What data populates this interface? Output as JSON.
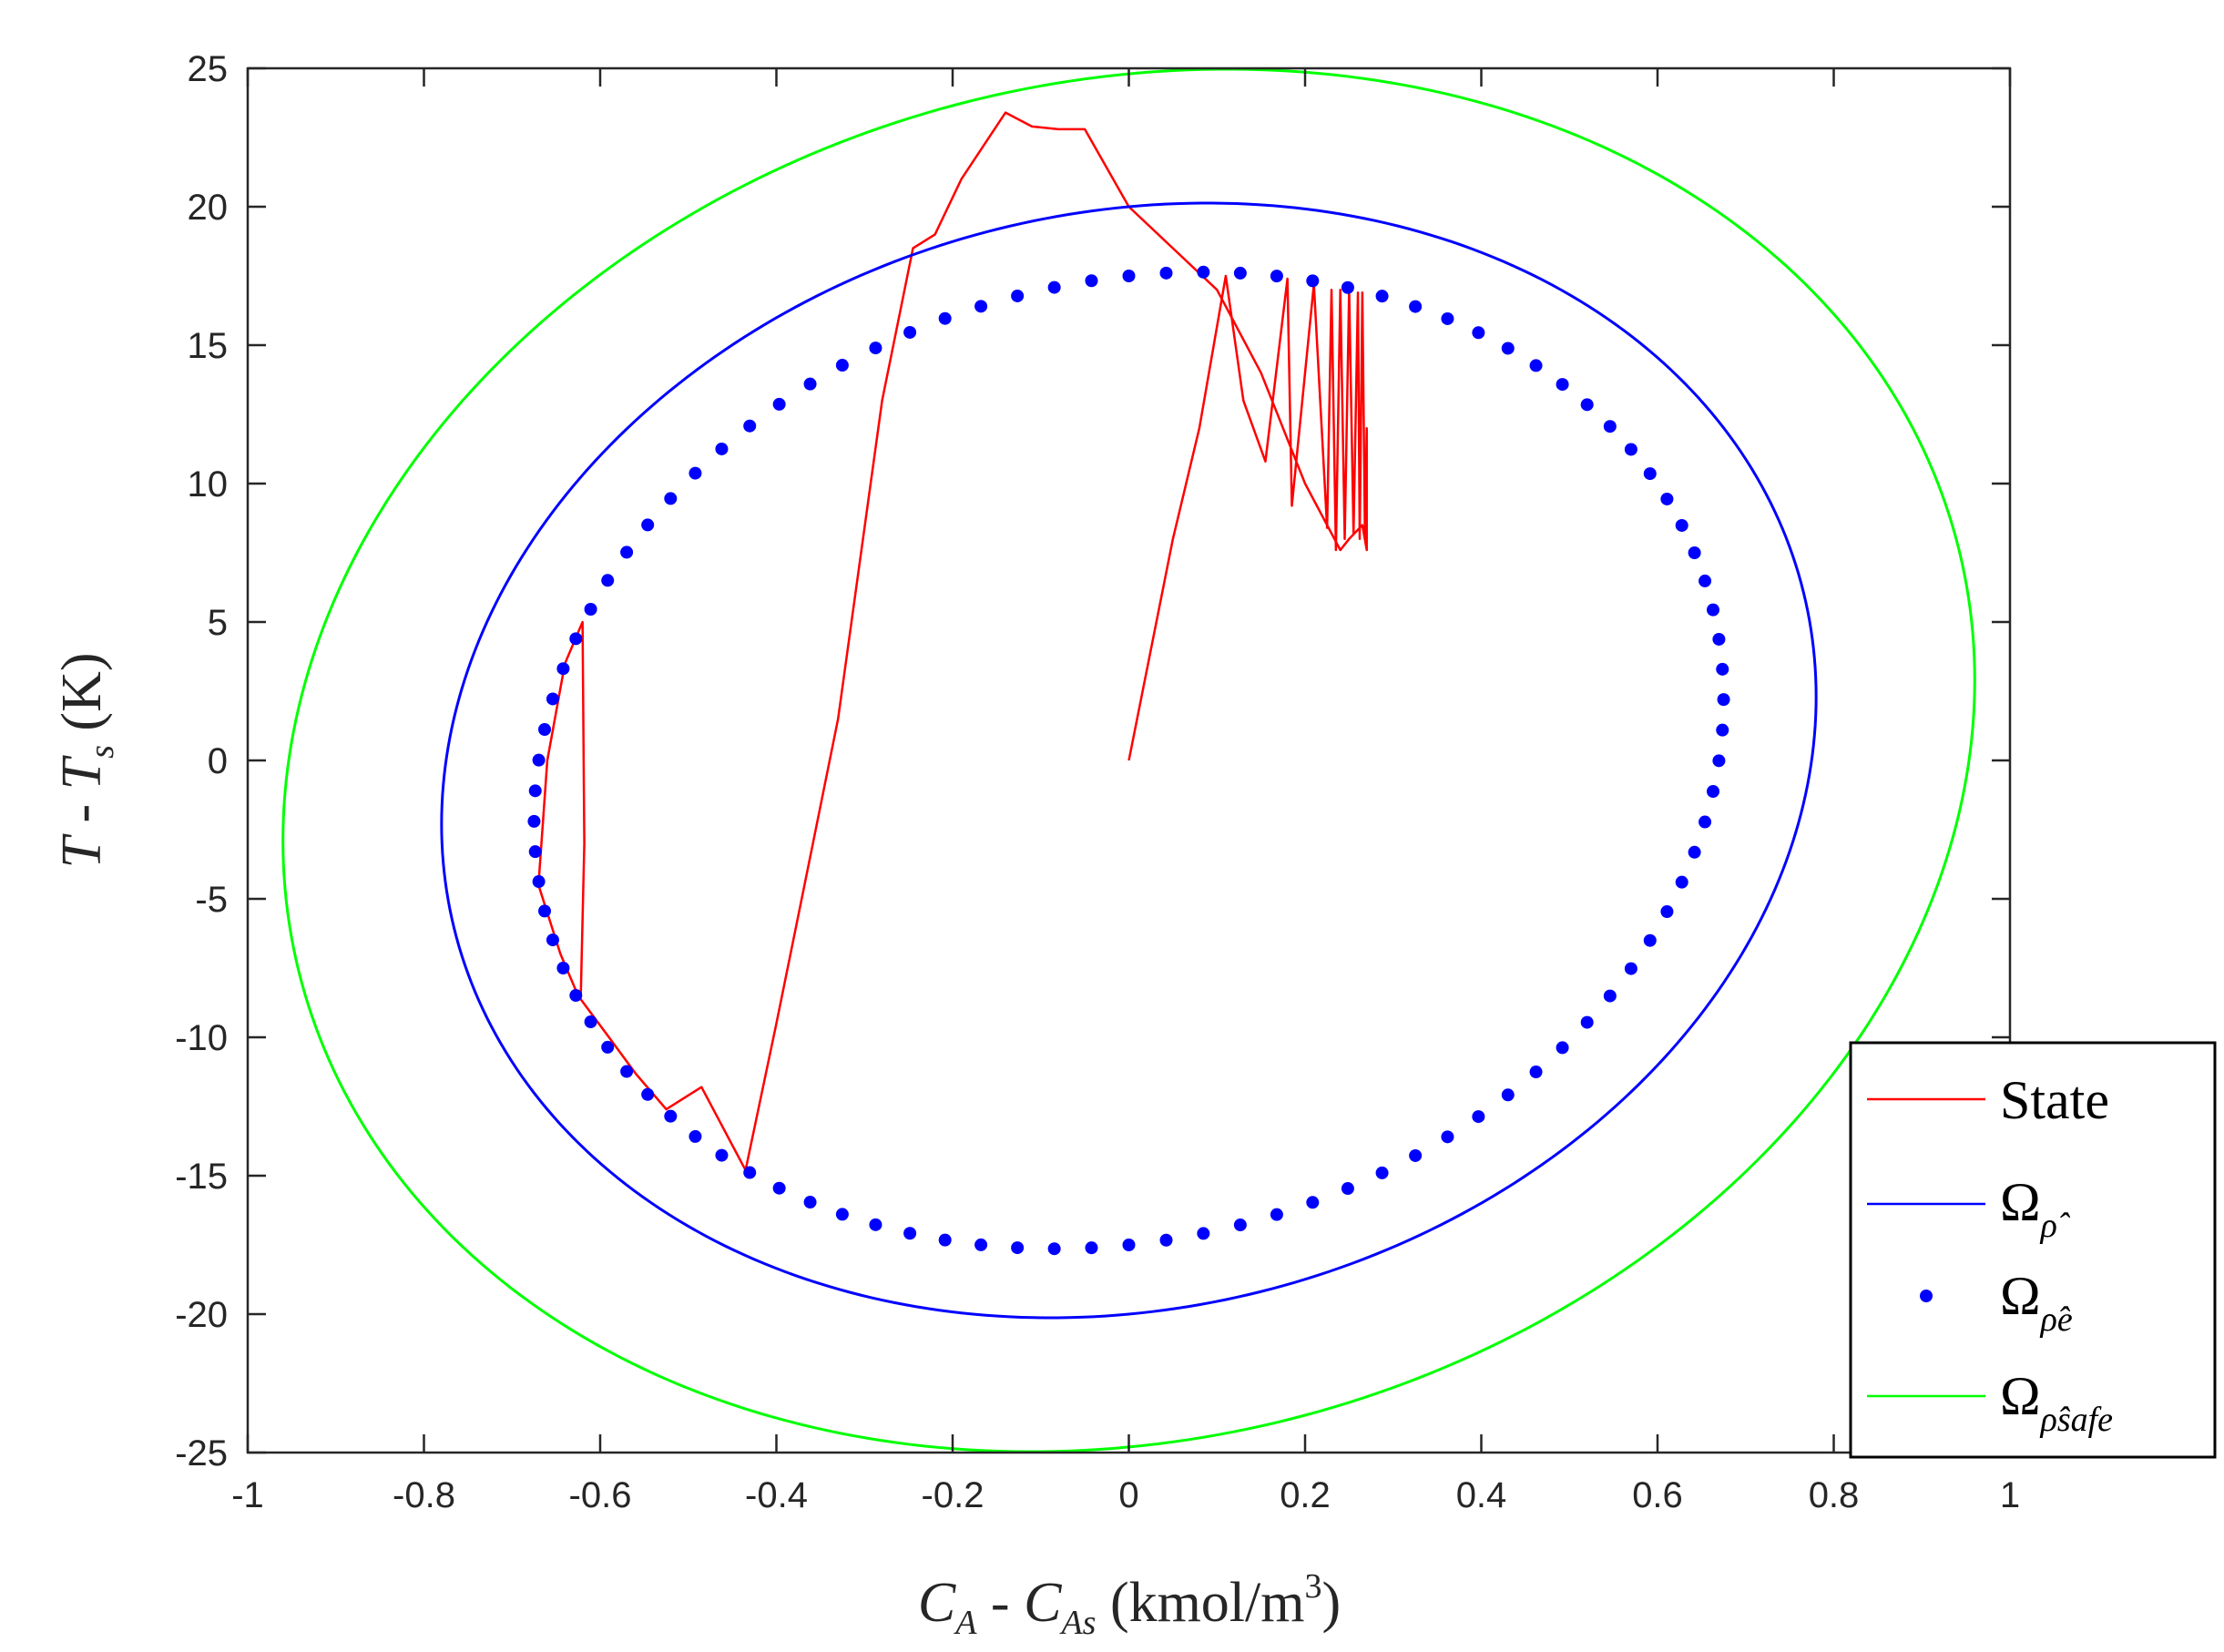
{
  "chart_data": {
    "type": "line",
    "title": "",
    "xlabel": {
      "a": "C",
      "a_sub": "A",
      "sep": " - ",
      "b": "C",
      "b_sub": "As",
      "unit": " (kmol/m",
      "unit_sup": "3",
      "unit_end": ")"
    },
    "ylabel": {
      "a": "T",
      "sep": " - ",
      "b": "T",
      "b_sub": "s",
      "unit": " (K)"
    },
    "xlim": [
      -1,
      1
    ],
    "ylim": [
      -25,
      25
    ],
    "xticks": [
      "-1",
      "-0.8",
      "-0.6",
      "-0.4",
      "-0.2",
      "0",
      "0.2",
      "0.4",
      "0.6",
      "0.8",
      "1"
    ],
    "yticks": [
      "25",
      "20",
      "15",
      "10",
      "5",
      "0",
      "-5",
      "-10",
      "-15",
      "-20",
      "-25"
    ],
    "grid": false,
    "legend_position": "bottom-right",
    "legend": [
      {
        "label": "State",
        "sub": "",
        "color": "#ff0000",
        "style": "line"
      },
      {
        "label": "Ω",
        "sub": "ρ̂",
        "color": "#0000ff",
        "style": "line"
      },
      {
        "label": "Ω",
        "sub": "ρ̂e",
        "color": "#0000ff",
        "style": "dots"
      },
      {
        "label": "Ω",
        "sub": "ρ̂safe",
        "color": "#00ff00",
        "style": "line"
      }
    ],
    "series": [
      {
        "legend_index": 0,
        "color": "#ff0000",
        "style": "line",
        "x": [
          0.0,
          0.025,
          0.05,
          0.08,
          0.11,
          0.13,
          0.155,
          0.18,
          0.185,
          0.21,
          0.225,
          0.23,
          0.235,
          0.24,
          0.245,
          0.25,
          0.255,
          0.26,
          0.262,
          0.265,
          0.268,
          0.27,
          0.27,
          0.265,
          0.25,
          0.24,
          0.2,
          0.15,
          0.1,
          0.05,
          0.0,
          -0.05,
          -0.08,
          -0.11,
          -0.14,
          -0.19,
          -0.22,
          -0.245,
          -0.28,
          -0.33,
          -0.37,
          -0.4,
          -0.435,
          -0.485,
          -0.525,
          -0.56,
          -0.59,
          -0.625,
          -0.645,
          -0.665,
          -0.67,
          -0.66,
          -0.64,
          -0.62,
          -0.618,
          -0.622
        ],
        "y": [
          0.0,
          4.0,
          8.0,
          12.0,
          17.5,
          13.0,
          10.8,
          17.4,
          9.2,
          17.2,
          8.4,
          17.0,
          7.6,
          17.0,
          8.0,
          17.0,
          8.2,
          16.9,
          8.0,
          16.9,
          8.0,
          12.0,
          7.6,
          8.5,
          8.0,
          7.6,
          10.0,
          14.0,
          17.0,
          18.5,
          20.0,
          22.8,
          22.8,
          22.9,
          23.4,
          21.0,
          19.0,
          18.5,
          13.0,
          1.5,
          -4.8,
          -9.5,
          -14.8,
          -11.8,
          -12.6,
          -11.3,
          -10.0,
          -8.5,
          -7.0,
          -5.0,
          -4.5,
          0.0,
          3.5,
          5.0,
          -3.0,
          -8.5
        ]
      },
      {
        "legend_index": 1,
        "color": "#0000ff",
        "style": "line",
        "shape": "ellipse",
        "center": [
          0.0,
          0.0
        ],
        "semi_axis_x": 0.78,
        "semi_axis_y": 20.0,
        "tilt_offset_y": 2.3
      },
      {
        "legend_index": 2,
        "color": "#0000ff",
        "style": "dots",
        "shape": "ellipse",
        "center": [
          0.0,
          0.0
        ],
        "semi_axis_x": 0.675,
        "semi_axis_y": 17.5,
        "tilt_offset_y": 2.2,
        "point_count": 100
      },
      {
        "legend_index": 3,
        "color": "#00ff00",
        "style": "line",
        "shape": "ellipse",
        "center": [
          0.0,
          0.0
        ],
        "semi_axis_x": 0.96,
        "semi_axis_y": 24.8,
        "tilt_offset_y": 2.9
      }
    ]
  }
}
